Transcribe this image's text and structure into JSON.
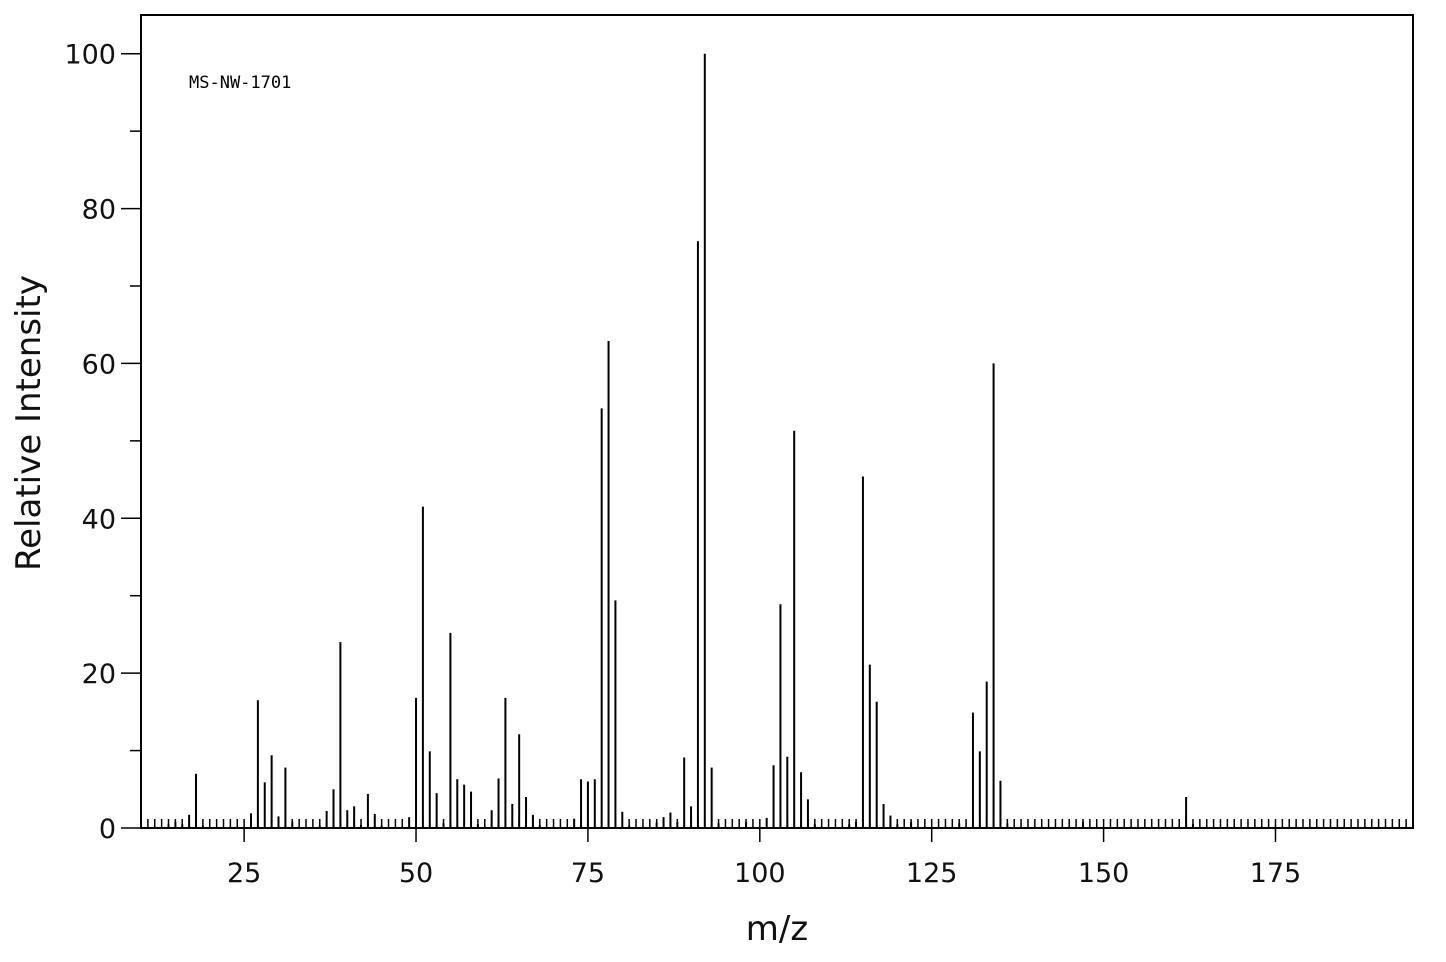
{
  "chart_data": {
    "type": "bar",
    "annotation": "MS-NW-1701",
    "xlabel": "m/z",
    "ylabel": "Relative Intensity",
    "xlim": [
      10,
      195
    ],
    "ylim": [
      0,
      105
    ],
    "xticks": [
      25,
      50,
      75,
      100,
      125,
      150,
      175
    ],
    "yticks": [
      0,
      20,
      40,
      60,
      80,
      100
    ],
    "grid": false,
    "peaks": [
      {
        "x": 14,
        "y": 0.5
      },
      {
        "x": 15,
        "y": 0.8
      },
      {
        "x": 16,
        "y": 0.5
      },
      {
        "x": 17,
        "y": 1.7
      },
      {
        "x": 18,
        "y": 7.0
      },
      {
        "x": 19,
        "y": 0.3
      },
      {
        "x": 26,
        "y": 1.9
      },
      {
        "x": 27,
        "y": 16.5
      },
      {
        "x": 28,
        "y": 5.9
      },
      {
        "x": 29,
        "y": 9.4
      },
      {
        "x": 30,
        "y": 1.5
      },
      {
        "x": 31,
        "y": 7.8
      },
      {
        "x": 32,
        "y": 0.8
      },
      {
        "x": 36,
        "y": 0.3
      },
      {
        "x": 37,
        "y": 2.2
      },
      {
        "x": 38,
        "y": 5.0
      },
      {
        "x": 39,
        "y": 24.0
      },
      {
        "x": 40,
        "y": 2.3
      },
      {
        "x": 41,
        "y": 2.8
      },
      {
        "x": 42,
        "y": 0.4
      },
      {
        "x": 43,
        "y": 4.4
      },
      {
        "x": 44,
        "y": 1.8
      },
      {
        "x": 45,
        "y": 0.3
      },
      {
        "x": 49,
        "y": 1.4
      },
      {
        "x": 50,
        "y": 16.8
      },
      {
        "x": 51,
        "y": 41.5
      },
      {
        "x": 52,
        "y": 9.9
      },
      {
        "x": 53,
        "y": 4.5
      },
      {
        "x": 54,
        "y": 0.6
      },
      {
        "x": 55,
        "y": 25.2
      },
      {
        "x": 56,
        "y": 6.3
      },
      {
        "x": 57,
        "y": 5.6
      },
      {
        "x": 58,
        "y": 4.7
      },
      {
        "x": 59,
        "y": 0.5
      },
      {
        "x": 61,
        "y": 2.3
      },
      {
        "x": 62,
        "y": 6.4
      },
      {
        "x": 63,
        "y": 16.8
      },
      {
        "x": 64,
        "y": 3.1
      },
      {
        "x": 65,
        "y": 12.1
      },
      {
        "x": 66,
        "y": 4.0
      },
      {
        "x": 67,
        "y": 1.7
      },
      {
        "x": 68,
        "y": 0.4
      },
      {
        "x": 73,
        "y": 1.2
      },
      {
        "x": 74,
        "y": 6.3
      },
      {
        "x": 75,
        "y": 6.0
      },
      {
        "x": 76,
        "y": 6.3
      },
      {
        "x": 77,
        "y": 54.2
      },
      {
        "x": 78,
        "y": 62.9
      },
      {
        "x": 79,
        "y": 29.4
      },
      {
        "x": 80,
        "y": 2.1
      },
      {
        "x": 81,
        "y": 0.3
      },
      {
        "x": 85,
        "y": 0.7
      },
      {
        "x": 86,
        "y": 1.4
      },
      {
        "x": 87,
        "y": 2.0
      },
      {
        "x": 88,
        "y": 0.8
      },
      {
        "x": 89,
        "y": 9.1
      },
      {
        "x": 90,
        "y": 2.8
      },
      {
        "x": 91,
        "y": 75.8
      },
      {
        "x": 92,
        "y": 100.0
      },
      {
        "x": 93,
        "y": 7.8
      },
      {
        "x": 94,
        "y": 0.6
      },
      {
        "x": 98,
        "y": 0.8
      },
      {
        "x": 101,
        "y": 1.3
      },
      {
        "x": 102,
        "y": 8.1
      },
      {
        "x": 103,
        "y": 28.9
      },
      {
        "x": 104,
        "y": 9.2
      },
      {
        "x": 105,
        "y": 51.3
      },
      {
        "x": 106,
        "y": 7.2
      },
      {
        "x": 107,
        "y": 3.7
      },
      {
        "x": 108,
        "y": 0.5
      },
      {
        "x": 113,
        "y": 0.5
      },
      {
        "x": 114,
        "y": 0.8
      },
      {
        "x": 115,
        "y": 45.4
      },
      {
        "x": 116,
        "y": 21.1
      },
      {
        "x": 117,
        "y": 16.3
      },
      {
        "x": 118,
        "y": 3.1
      },
      {
        "x": 119,
        "y": 1.6
      },
      {
        "x": 120,
        "y": 0.5
      },
      {
        "x": 122,
        "y": 0.8
      },
      {
        "x": 129,
        "y": 0.6
      },
      {
        "x": 131,
        "y": 14.9
      },
      {
        "x": 132,
        "y": 9.9
      },
      {
        "x": 133,
        "y": 18.9
      },
      {
        "x": 134,
        "y": 60.0
      },
      {
        "x": 135,
        "y": 6.1
      },
      {
        "x": 136,
        "y": 0.6
      },
      {
        "x": 147,
        "y": 0.8
      },
      {
        "x": 162,
        "y": 4.0
      },
      {
        "x": 163,
        "y": 0.5
      }
    ]
  }
}
